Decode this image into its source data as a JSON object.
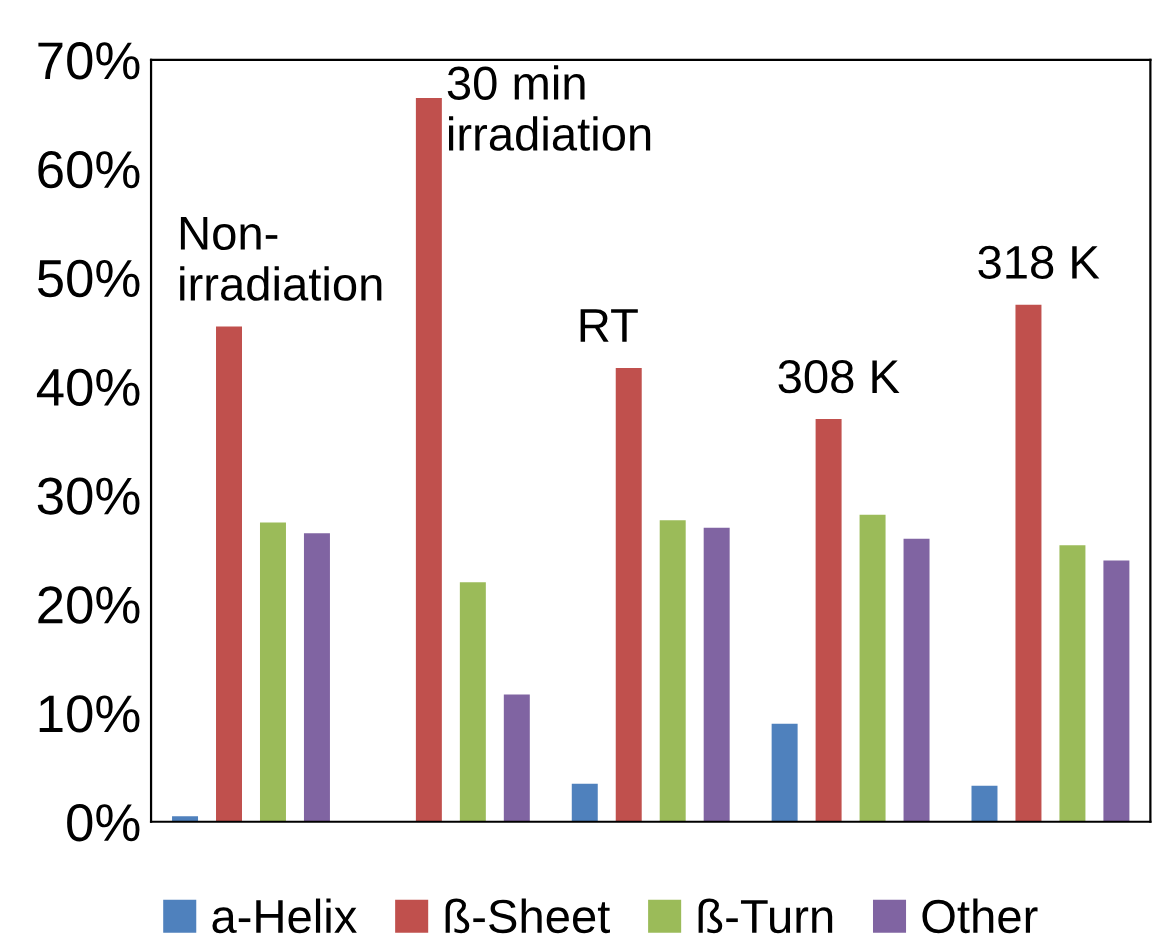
{
  "chart_data": {
    "type": "bar",
    "categories": [
      null,
      null,
      null,
      null,
      null
    ],
    "series": [
      {
        "name": "a-Helix",
        "color": "#4f81bd",
        "values": [
          0.5,
          0,
          3.5,
          9,
          3.3
        ]
      },
      {
        "name": "ß-Sheet",
        "color": "#c0504d",
        "values": [
          45.5,
          66.5,
          41.7,
          37,
          47.5
        ]
      },
      {
        "name": "ß-Turn",
        "color": "#9bbb59",
        "values": [
          27.5,
          22,
          27.7,
          28.2,
          25.4
        ]
      },
      {
        "name": "Other",
        "color": "#8064a2",
        "values": [
          26.5,
          11.7,
          27,
          26,
          24
        ]
      }
    ],
    "annotations": [
      "Non-\nirradiation",
      "30 min\nirradiation",
      "RT",
      "308 K",
      "318 K"
    ],
    "ylim": [
      0,
      70
    ],
    "yticks": [
      {
        "value": 0,
        "label": "0%"
      },
      {
        "value": 10,
        "label": "10%"
      },
      {
        "value": 20,
        "label": "20%"
      },
      {
        "value": 30,
        "label": "30%"
      },
      {
        "value": 40,
        "label": "40%"
      },
      {
        "value": 50,
        "label": "50%"
      },
      {
        "value": 60,
        "label": "60%"
      },
      {
        "value": 70,
        "label": "70%"
      }
    ],
    "grid": false,
    "legend": "bottom"
  }
}
